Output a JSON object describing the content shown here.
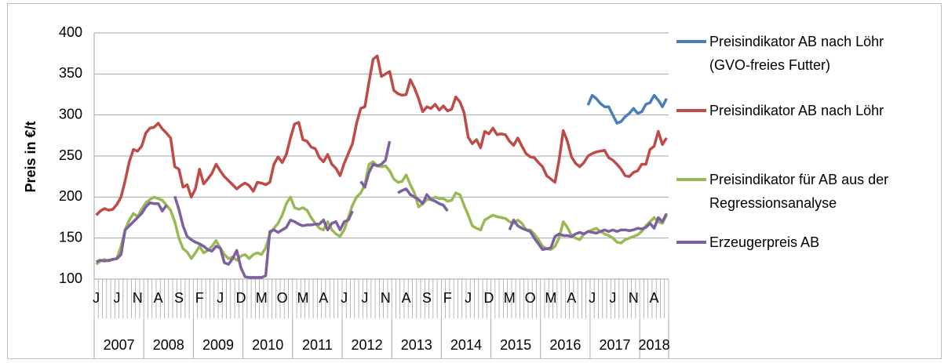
{
  "chart_data": {
    "type": "line",
    "y_label": "Preis in €/t",
    "ylim": [
      100,
      400
    ],
    "yticks": [
      100,
      150,
      200,
      250,
      300,
      350,
      400
    ],
    "grid": true,
    "legend": "right",
    "categories": [
      "J",
      null,
      null,
      null,
      null,
      "J",
      null,
      null,
      null,
      null,
      "N",
      null,
      null,
      null,
      null,
      "A",
      null,
      null,
      null,
      null,
      "S",
      null,
      null,
      null,
      null,
      "F",
      null,
      null,
      null,
      null,
      "J",
      null,
      null,
      null,
      null,
      "D",
      null,
      null,
      null,
      null,
      "M",
      null,
      null,
      null,
      null,
      "O",
      null,
      null,
      null,
      null,
      "M",
      null,
      null,
      null,
      null,
      "A",
      null,
      null,
      null,
      null,
      "J",
      null,
      null,
      null,
      null,
      "J",
      null,
      null,
      null,
      null,
      "N",
      null,
      null,
      null,
      null,
      "A",
      null,
      null,
      null,
      null,
      "S",
      null,
      null,
      null,
      null,
      "F",
      null,
      null,
      null,
      null,
      "J",
      null,
      null,
      null,
      null,
      "D",
      null,
      null,
      null,
      null,
      "M",
      null,
      null,
      null,
      null,
      "O",
      null,
      null,
      null,
      null,
      "M",
      null,
      null,
      null,
      null,
      "A",
      null,
      null,
      null,
      null,
      "J",
      null,
      null,
      null,
      null,
      "J",
      null,
      null,
      null,
      null,
      "N",
      null,
      null,
      null,
      null,
      "A",
      null,
      null,
      null
    ],
    "year_labels": [
      "2007",
      "2008",
      "2009",
      "2010",
      "2011",
      "2012",
      "2013",
      "2014",
      "2015",
      "2016",
      "2017",
      "2018"
    ],
    "series": [
      {
        "name": "Preisindikator AB nach Löhr (GVO-freies Futter)",
        "color": "#4a7ebb",
        "values": [
          null,
          null,
          null,
          null,
          null,
          null,
          null,
          null,
          null,
          null,
          null,
          null,
          null,
          null,
          null,
          null,
          null,
          null,
          null,
          null,
          null,
          null,
          null,
          null,
          null,
          null,
          null,
          null,
          null,
          null,
          null,
          null,
          null,
          null,
          null,
          null,
          null,
          null,
          null,
          null,
          null,
          null,
          null,
          null,
          null,
          null,
          null,
          null,
          null,
          null,
          null,
          null,
          null,
          null,
          null,
          null,
          null,
          null,
          null,
          null,
          null,
          null,
          null,
          null,
          null,
          null,
          null,
          null,
          null,
          null,
          null,
          null,
          null,
          null,
          null,
          null,
          null,
          null,
          null,
          null,
          null,
          null,
          null,
          null,
          null,
          null,
          null,
          null,
          null,
          null,
          null,
          null,
          null,
          null,
          null,
          null,
          null,
          null,
          null,
          null,
          null,
          null,
          null,
          null,
          null,
          null,
          null,
          null,
          null,
          null,
          null,
          null,
          null,
          null,
          null,
          null,
          null,
          null,
          null,
          312,
          324,
          320,
          314,
          310,
          310,
          300,
          290,
          292,
          298,
          302,
          308,
          302,
          304,
          313,
          315,
          324,
          318,
          310,
          320
        ]
      },
      {
        "name": "Preisindikator AB nach Löhr",
        "color": "#be4b48",
        "values": [
          178,
          183,
          186,
          184,
          185,
          191,
          200,
          220,
          243,
          258,
          256,
          262,
          278,
          284,
          285,
          290,
          283,
          278,
          272,
          237,
          234,
          212,
          215,
          200,
          210,
          234,
          216,
          222,
          229,
          240,
          232,
          225,
          220,
          215,
          210,
          214,
          217,
          214,
          207,
          218,
          217,
          215,
          218,
          240,
          249,
          242,
          252,
          272,
          289,
          291,
          270,
          268,
          261,
          259,
          248,
          243,
          252,
          240,
          235,
          226,
          241,
          253,
          265,
          290,
          308,
          310,
          340,
          368,
          372,
          347,
          350,
          353,
          330,
          326,
          324,
          325,
          343,
          333,
          320,
          304,
          310,
          308,
          313,
          306,
          311,
          305,
          307,
          322,
          316,
          303,
          273,
          265,
          270,
          260,
          280,
          277,
          284,
          276,
          277,
          276,
          268,
          263,
          272,
          262,
          253,
          249,
          248,
          242,
          237,
          226,
          222,
          218,
          245,
          281,
          268,
          249,
          241,
          237,
          242,
          250,
          253,
          255,
          256,
          257,
          248,
          245,
          240,
          234,
          226,
          225,
          230,
          232,
          240,
          240,
          258,
          262,
          280,
          264,
          272
        ]
      },
      {
        "name": "Preisindikator für AB aus der Regressionsanalyse",
        "color": "#98b954",
        "values": [
          118,
          122,
          124,
          122,
          124,
          125,
          140,
          160,
          172,
          180,
          176,
          185,
          193,
          197,
          200,
          198,
          196,
          190,
          184,
          170,
          150,
          137,
          133,
          125,
          132,
          140,
          132,
          135,
          140,
          147,
          138,
          130,
          125,
          127,
          123,
          128,
          130,
          125,
          130,
          132,
          130,
          138,
          155,
          162,
          168,
          178,
          192,
          200,
          187,
          185,
          187,
          184,
          175,
          168,
          162,
          160,
          170,
          160,
          155,
          152,
          160,
          175,
          190,
          200,
          205,
          215,
          240,
          243,
          238,
          237,
          238,
          232,
          222,
          218,
          219,
          227,
          215,
          205,
          188,
          192,
          197,
          197,
          200,
          198,
          198,
          195,
          196,
          205,
          203,
          190,
          178,
          165,
          162,
          160,
          172,
          175,
          178,
          176,
          175,
          174,
          170,
          168,
          172,
          168,
          160,
          160,
          155,
          148,
          140,
          137,
          136,
          140,
          150,
          170,
          163,
          153,
          150,
          148,
          155,
          158,
          160,
          162,
          158,
          155,
          153,
          150,
          145,
          144,
          148,
          150,
          152,
          154,
          158,
          165,
          170,
          175,
          170,
          168,
          178
        ]
      },
      {
        "name": "Erzeugerpreis AB",
        "color": "#7d60a0",
        "values": [
          121,
          123,
          122,
          123,
          124,
          125,
          130,
          160,
          165,
          170,
          175,
          180,
          188,
          193,
          192,
          192,
          183,
          190,
          null,
          201,
          185,
          165,
          152,
          148,
          145,
          143,
          140,
          136,
          134,
          140,
          138,
          120,
          118,
          125,
          135,
          114,
          103,
          102,
          102,
          102,
          102,
          104,
          158,
          160,
          157,
          160,
          163,
          172,
          170,
          167,
          165,
          166,
          166,
          167,
          167,
          172,
          160,
          168,
          170,
          160,
          170,
          172,
          183,
          null,
          219,
          212,
          230,
          240,
          238,
          240,
          245,
          268,
          null,
          205,
          208,
          210,
          203,
          200,
          197,
          192,
          203,
          197,
          195,
          192,
          190,
          183,
          null,
          null,
          null,
          null,
          null,
          null,
          null,
          null,
          null,
          null,
          null,
          null,
          null,
          null,
          160,
          172,
          165,
          162,
          160,
          158,
          150,
          143,
          136,
          137,
          138,
          152,
          155,
          153,
          153,
          152,
          155,
          157,
          155,
          158,
          157,
          156,
          158,
          160,
          158,
          160,
          158,
          160,
          160,
          159,
          160,
          162,
          161,
          163,
          168,
          162,
          175,
          170,
          180
        ]
      }
    ]
  }
}
